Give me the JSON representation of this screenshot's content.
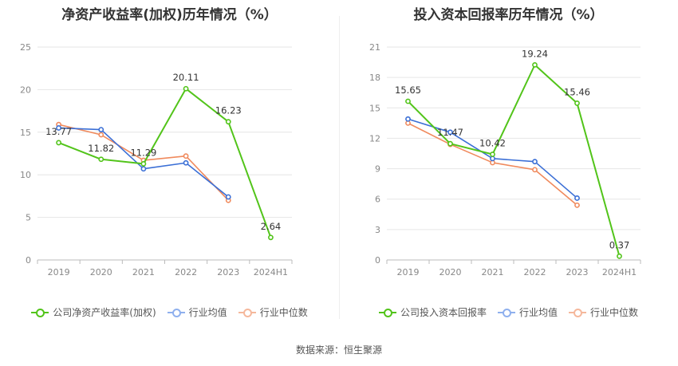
{
  "footer": {
    "source": "数据来源：恒生聚源"
  },
  "chart_data": [
    {
      "type": "line",
      "title": "净资产收益率(加权)历年情况（%）",
      "categories": [
        "2019",
        "2020",
        "2021",
        "2022",
        "2023",
        "2024H1"
      ],
      "ylim": [
        0,
        25
      ],
      "yticks": [
        0,
        5,
        10,
        15,
        20,
        25
      ],
      "grid": true,
      "legend": "bottom",
      "series": [
        {
          "name": "公司净资产收益率(加权)",
          "color": "#52c41a",
          "values": [
            13.77,
            11.82,
            11.29,
            20.11,
            16.23,
            2.64
          ],
          "labels": [
            "13.77",
            "11.82",
            "11.29",
            "20.11",
            "16.23",
            "2.64"
          ]
        },
        {
          "name": "行业均值",
          "color": "#3b6fd6",
          "values": [
            15.5,
            15.3,
            10.7,
            11.4,
            7.4,
            null
          ]
        },
        {
          "name": "行业中位数",
          "color": "#f08a5d",
          "values": [
            15.9,
            14.7,
            11.7,
            12.2,
            7.0,
            null
          ]
        }
      ]
    },
    {
      "type": "line",
      "title": "投入资本回报率历年情况（%）",
      "categories": [
        "2019",
        "2020",
        "2021",
        "2022",
        "2023",
        "2024H1"
      ],
      "ylim": [
        0,
        21
      ],
      "yticks": [
        0,
        3,
        6,
        9,
        12,
        15,
        18,
        21
      ],
      "grid": true,
      "legend": "bottom",
      "series": [
        {
          "name": "公司投入资本回报率",
          "color": "#52c41a",
          "values": [
            15.65,
            11.47,
            10.42,
            19.24,
            15.46,
            0.37
          ],
          "labels": [
            "15.65",
            "11.47",
            "10.42",
            "19.24",
            "15.46",
            "0.37"
          ]
        },
        {
          "name": "行业均值",
          "color": "#3b6fd6",
          "values": [
            13.9,
            12.6,
            10.0,
            9.7,
            6.1,
            null
          ]
        },
        {
          "name": "行业中位数",
          "color": "#f08a5d",
          "values": [
            13.5,
            11.4,
            9.6,
            8.9,
            5.4,
            null
          ]
        }
      ]
    }
  ]
}
